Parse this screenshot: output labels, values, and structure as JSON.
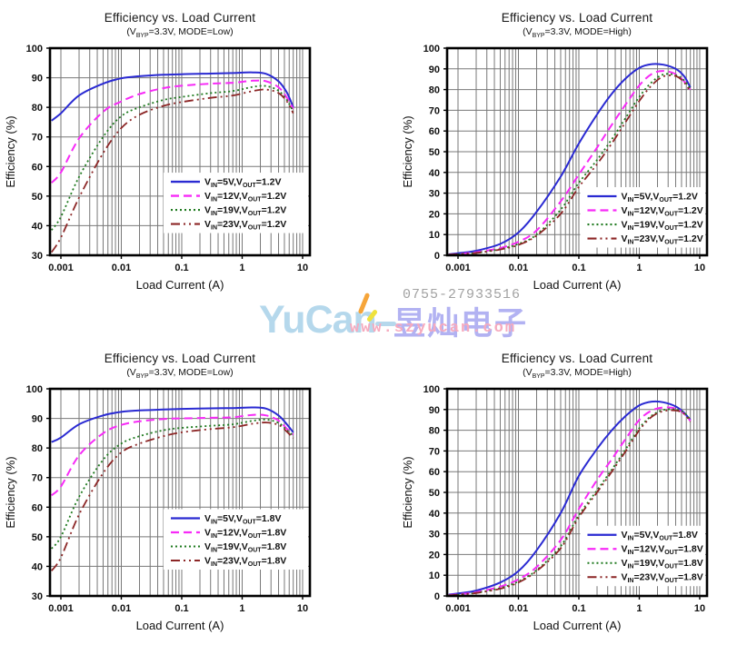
{
  "page": {
    "background": "#ffffff"
  },
  "watermark": {
    "brand": "YuCan",
    "brand_cn": "昱灿电子",
    "phone": "0755-27933516",
    "website": "www.szyucan.com",
    "colors": {
      "brand": "#b5d8ec",
      "brand_cn": "#b2b2f2",
      "phone": "#a2a2a2",
      "website": "#f6aabe",
      "accent_orange": "#f6a53a",
      "accent_yellow": "#efe23c"
    }
  },
  "chart_data": [
    {
      "type": "line",
      "title": "Efficiency vs. Load Current",
      "subtitle": "(V~BYP~=3.3V, MODE=Low)",
      "xlabel": "Load Current (A)",
      "ylabel": "Efficiency (%)",
      "x_scale": "log",
      "xlim": [
        0.00066,
        13.2
      ],
      "ylim": [
        30,
        100
      ],
      "y_tick_step": 10,
      "x_ticks": [
        {
          "value": 0.001,
          "label": "0.001"
        },
        {
          "value": 0.01,
          "label": "0.01"
        },
        {
          "value": 0.1,
          "label": "0.1"
        },
        {
          "value": 1,
          "label": "1"
        },
        {
          "value": 10,
          "label": "10"
        }
      ],
      "grid": true,
      "legend_pos": {
        "x": 0.465,
        "y": 0.645
      },
      "series": [
        {
          "name": "V~IN~=5V,V~OUT~=1.2V",
          "color": "#2a2ad2",
          "dash": "",
          "width": 2,
          "x": [
            0.0007,
            0.001,
            0.002,
            0.005,
            0.01,
            0.02,
            0.05,
            0.1,
            0.3,
            0.7,
            1.5,
            2.5,
            4,
            5.5,
            7
          ],
          "y": [
            75.5,
            78,
            84,
            88,
            89.8,
            90.5,
            91,
            91.2,
            91.4,
            91.6,
            91.8,
            91.3,
            88.8,
            85,
            80
          ]
        },
        {
          "name": "V~IN~=12V,V~OUT~=1.2V",
          "color": "#f72af7",
          "dash": "9,5",
          "width": 2,
          "x": [
            0.0007,
            0.001,
            0.002,
            0.005,
            0.01,
            0.02,
            0.05,
            0.1,
            0.3,
            0.7,
            1.5,
            2.5,
            4,
            5.5,
            7
          ],
          "y": [
            54.5,
            58,
            69.5,
            78.5,
            82,
            84.5,
            86.5,
            87.3,
            88,
            88.3,
            89,
            88.8,
            86.8,
            83.3,
            79.5
          ]
        },
        {
          "name": "V~IN~=19V,V~OUT~=1.2V",
          "color": "#1f7a1f",
          "dash": "2,3",
          "width": 1.8,
          "x": [
            0.0007,
            0.001,
            0.002,
            0.005,
            0.01,
            0.02,
            0.05,
            0.1,
            0.3,
            0.7,
            1.5,
            2.5,
            4,
            5.5,
            7
          ],
          "y": [
            38.5,
            43,
            56.5,
            70,
            77,
            80,
            82.5,
            83.5,
            84.8,
            85.5,
            86.9,
            87.2,
            85.6,
            82.5,
            78.5
          ]
        },
        {
          "name": "V~IN~=23V,V~OUT~=1.2V",
          "color": "#8c2626",
          "dash": "10,4,2,4,2,4",
          "width": 1.8,
          "x": [
            0.0007,
            0.001,
            0.002,
            0.005,
            0.01,
            0.02,
            0.05,
            0.1,
            0.3,
            0.7,
            1.5,
            2.5,
            4,
            5.5,
            7
          ],
          "y": [
            31,
            36,
            49.5,
            64.5,
            73,
            77.5,
            80.5,
            81.8,
            83.2,
            84,
            85.5,
            86,
            84.8,
            82,
            78
          ]
        }
      ]
    },
    {
      "type": "line",
      "title": "Efficiency vs. Load Current",
      "subtitle": "(V~BYP~=3.3V, MODE=High)",
      "xlabel": "Load Current (A)",
      "ylabel": "Efficiency (%)",
      "x_scale": "log",
      "xlim": [
        0.00066,
        13.2
      ],
      "ylim": [
        0,
        100
      ],
      "y_tick_step": 10,
      "x_ticks": [
        {
          "value": 0.001,
          "label": "0.001"
        },
        {
          "value": 0.01,
          "label": "0.01"
        },
        {
          "value": 0.1,
          "label": "0.1"
        },
        {
          "value": 1,
          "label": "1"
        },
        {
          "value": 10,
          "label": "10"
        }
      ],
      "grid": true,
      "legend_pos": {
        "x": 0.54,
        "y": 0.715
      },
      "series": [
        {
          "name": "V~IN~=5V,V~OUT~=1.2V",
          "color": "#2a2ad2",
          "dash": "",
          "width": 2,
          "x": [
            0.0007,
            0.001,
            0.002,
            0.005,
            0.01,
            0.02,
            0.05,
            0.1,
            0.2,
            0.35,
            0.6,
            1,
            1.6,
            2.5,
            4,
            5.5,
            7
          ],
          "y": [
            0.5,
            1,
            2.2,
            5.5,
            11,
            21,
            38,
            54,
            68,
            78,
            85.5,
            90.5,
            92.3,
            92,
            90,
            86.5,
            81
          ]
        },
        {
          "name": "V~IN~=12V,V~OUT~=1.2V",
          "color": "#f72af7",
          "dash": "9,5",
          "width": 2,
          "x": [
            0.0007,
            0.001,
            0.002,
            0.005,
            0.01,
            0.02,
            0.05,
            0.1,
            0.2,
            0.35,
            0.6,
            1,
            1.6,
            2.5,
            4,
            5.5,
            7
          ],
          "y": [
            0.3,
            0.6,
            1.5,
            3.5,
            6.5,
            12,
            26,
            39,
            52,
            63,
            73,
            82,
            87.5,
            89,
            87.5,
            84,
            80
          ]
        },
        {
          "name": "V~IN~=19V,V~OUT~=1.2V",
          "color": "#1f7a1f",
          "dash": "2,3",
          "width": 1.8,
          "x": [
            0.0007,
            0.001,
            0.002,
            0.005,
            0.01,
            0.02,
            0.05,
            0.1,
            0.2,
            0.35,
            0.6,
            1,
            1.6,
            2.5,
            4,
            5.5,
            7
          ],
          "y": [
            0.3,
            0.5,
            1.2,
            3,
            5.5,
            10,
            22,
            35,
            46,
            56,
            66.5,
            76.5,
            83.5,
            87.3,
            87,
            84.5,
            80.5
          ]
        },
        {
          "name": "V~IN~=23V,V~OUT~=1.2V",
          "color": "#8c2626",
          "dash": "10,4,2,4,2,4",
          "width": 1.8,
          "x": [
            0.0007,
            0.001,
            0.002,
            0.005,
            0.01,
            0.02,
            0.05,
            0.1,
            0.2,
            0.35,
            0.6,
            1,
            1.6,
            2.5,
            4,
            5.5,
            7
          ],
          "y": [
            0.3,
            0.5,
            1.1,
            2.8,
            5,
            9.5,
            20,
            33,
            44,
            54,
            64.5,
            74.5,
            82,
            86.3,
            86.5,
            83.5,
            79
          ]
        }
      ]
    },
    {
      "type": "line",
      "title": "Efficiency vs. Load Current",
      "subtitle": "(V~BYP~=3.3V, MODE=Low)",
      "xlabel": "Load Current (A)",
      "ylabel": "Efficiency (%)",
      "x_scale": "log",
      "xlim": [
        0.00066,
        13.2
      ],
      "ylim": [
        30,
        100
      ],
      "y_tick_step": 10,
      "x_ticks": [
        {
          "value": 0.001,
          "label": "0.001"
        },
        {
          "value": 0.01,
          "label": "0.01"
        },
        {
          "value": 0.1,
          "label": "0.1"
        },
        {
          "value": 1,
          "label": "1"
        },
        {
          "value": 10,
          "label": "10"
        }
      ],
      "grid": true,
      "legend_pos": {
        "x": 0.465,
        "y": 0.625
      },
      "series": [
        {
          "name": "V~IN~=5V,V~OUT~=1.8V",
          "color": "#2a2ad2",
          "dash": "",
          "width": 2,
          "x": [
            0.0007,
            0.001,
            0.002,
            0.005,
            0.01,
            0.02,
            0.05,
            0.1,
            0.3,
            0.7,
            1.5,
            2.5,
            4,
            5.5,
            7
          ],
          "y": [
            82,
            83.5,
            88,
            91,
            92.2,
            92.7,
            93,
            93.2,
            93.4,
            93.5,
            93.7,
            93.3,
            91,
            88,
            85.3
          ]
        },
        {
          "name": "V~IN~=12V,V~OUT~=1.8V",
          "color": "#f72af7",
          "dash": "9,5",
          "width": 2,
          "x": [
            0.0007,
            0.001,
            0.002,
            0.005,
            0.01,
            0.02,
            0.05,
            0.1,
            0.3,
            0.7,
            1.5,
            2.5,
            4,
            5.5,
            7
          ],
          "y": [
            64,
            67,
            77.5,
            85,
            87.8,
            89,
            89.8,
            90,
            90.2,
            90.4,
            91.2,
            91,
            89.3,
            86.5,
            84.5
          ]
        },
        {
          "name": "V~IN~=19V,V~OUT~=1.8V",
          "color": "#1f7a1f",
          "dash": "2,3",
          "width": 1.8,
          "x": [
            0.0007,
            0.001,
            0.002,
            0.005,
            0.01,
            0.02,
            0.05,
            0.1,
            0.3,
            0.7,
            1.5,
            2.5,
            4,
            5.5,
            7
          ],
          "y": [
            46,
            50,
            63.5,
            76,
            81.5,
            84,
            86,
            86.8,
            87.5,
            88,
            89.2,
            89.6,
            88.5,
            86,
            84.2
          ]
        },
        {
          "name": "V~IN~=23V,V~OUT~=1.8V",
          "color": "#8c2626",
          "dash": "10,4,2,4,2,4",
          "width": 1.8,
          "x": [
            0.0007,
            0.001,
            0.002,
            0.005,
            0.01,
            0.02,
            0.05,
            0.1,
            0.3,
            0.7,
            1.5,
            2.5,
            4,
            5.5,
            7
          ],
          "y": [
            38.5,
            43,
            57.5,
            71.5,
            78.5,
            81.5,
            84,
            85.3,
            86.4,
            87,
            88.2,
            88.6,
            87.8,
            85.5,
            83.3
          ]
        }
      ]
    },
    {
      "type": "line",
      "title": "Efficiency vs. Load Current",
      "subtitle": "(V~BYP~=3.3V, MODE=High)",
      "xlabel": "Load Current (A)",
      "ylabel": "Efficiency (%)",
      "x_scale": "log",
      "xlim": [
        0.00066,
        13.2
      ],
      "ylim": [
        0,
        100
      ],
      "y_tick_step": 10,
      "x_ticks": [
        {
          "value": 0.001,
          "label": "0.001"
        },
        {
          "value": 0.01,
          "label": "0.01"
        },
        {
          "value": 0.1,
          "label": "0.1"
        },
        {
          "value": 1,
          "label": "1"
        },
        {
          "value": 10,
          "label": "10"
        }
      ],
      "grid": true,
      "legend_pos": {
        "x": 0.54,
        "y": 0.705
      },
      "series": [
        {
          "name": "V~IN~=5V,V~OUT~=1.8V",
          "color": "#2a2ad2",
          "dash": "",
          "width": 2,
          "x": [
            0.0007,
            0.001,
            0.002,
            0.005,
            0.01,
            0.02,
            0.05,
            0.1,
            0.2,
            0.35,
            0.6,
            1,
            1.6,
            2.5,
            4,
            5.5,
            7
          ],
          "y": [
            0.6,
            1.2,
            2.6,
            6.5,
            12,
            22,
            40,
            58,
            71,
            80,
            87,
            92,
            93.8,
            93.5,
            91.5,
            88.5,
            85
          ]
        },
        {
          "name": "V~IN~=12V,V~OUT~=1.8V",
          "color": "#f72af7",
          "dash": "9,5",
          "width": 2,
          "x": [
            0.0007,
            0.001,
            0.002,
            0.005,
            0.01,
            0.02,
            0.05,
            0.1,
            0.2,
            0.35,
            0.6,
            1,
            1.6,
            2.5,
            4,
            5.5,
            7
          ],
          "y": [
            0.4,
            0.8,
            1.8,
            4.5,
            8,
            14,
            27,
            42,
            56,
            66,
            76,
            85,
            89.5,
            91,
            90.5,
            88,
            84.5
          ]
        },
        {
          "name": "V~IN~=19V,V~OUT~=1.8V",
          "color": "#1f7a1f",
          "dash": "2,3",
          "width": 1.8,
          "x": [
            0.0007,
            0.001,
            0.002,
            0.005,
            0.01,
            0.02,
            0.05,
            0.1,
            0.2,
            0.35,
            0.6,
            1,
            1.6,
            2.5,
            4,
            5.5,
            7
          ],
          "y": [
            0.3,
            0.6,
            1.5,
            3.8,
            7,
            12.5,
            24,
            39,
            51,
            61,
            71,
            81,
            87,
            89.8,
            90,
            88.5,
            85
          ]
        },
        {
          "name": "V~IN~=23V,V~OUT~=1.8V",
          "color": "#8c2626",
          "dash": "10,4,2,4,2,4",
          "width": 1.8,
          "x": [
            0.0007,
            0.001,
            0.002,
            0.005,
            0.01,
            0.02,
            0.05,
            0.1,
            0.2,
            0.35,
            0.6,
            1,
            1.6,
            2.5,
            4,
            5.5,
            7
          ],
          "y": [
            0.3,
            0.6,
            1.4,
            3.5,
            6.5,
            12,
            23,
            38,
            50,
            60,
            70,
            80,
            86.5,
            89.2,
            89.5,
            88,
            84
          ]
        }
      ]
    }
  ]
}
